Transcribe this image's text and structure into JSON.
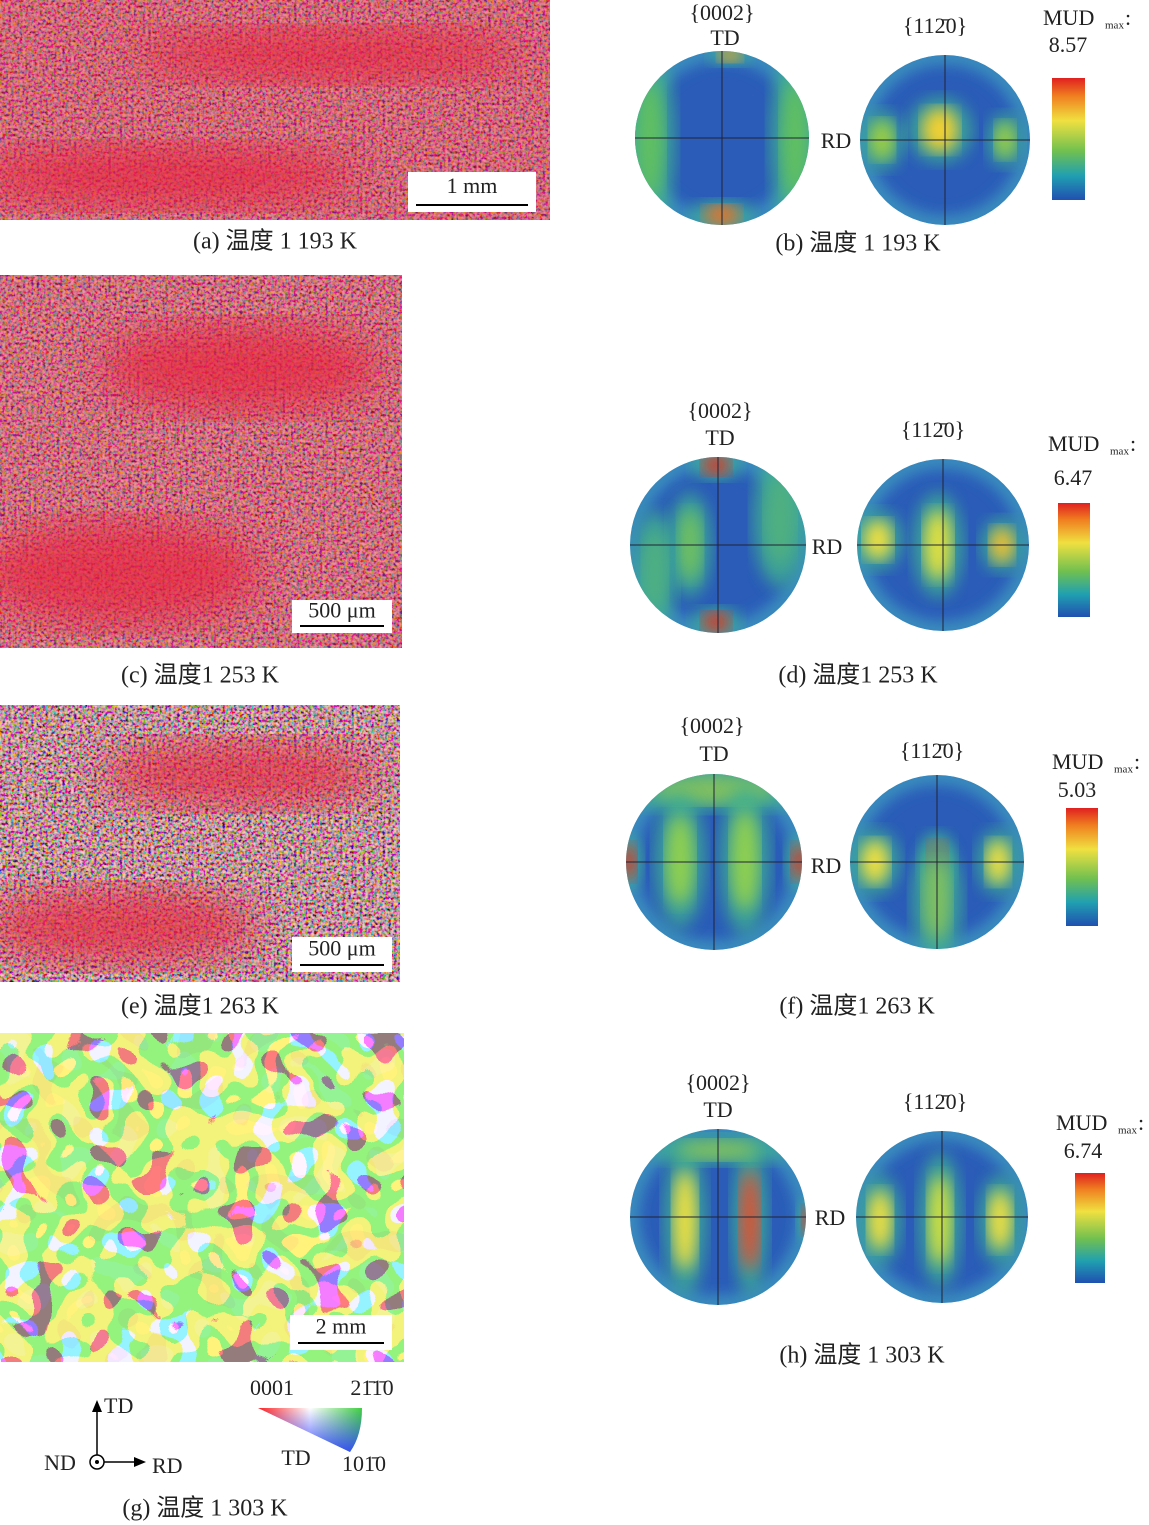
{
  "maps": [
    {
      "caption": "(a) 温度 1 193 K",
      "scale_bar": "1 mm"
    },
    {
      "caption": "(c) 温度1 253 K",
      "scale_bar": "500 μm"
    },
    {
      "caption": "(e) 温度1 263 K",
      "scale_bar": "500 μm"
    },
    {
      "caption": "(g) 温度 1 303 K",
      "scale_bar": "2 mm"
    }
  ],
  "pole_figures": [
    {
      "caption": "(b) 温度 1 193 K",
      "basal": "{0002}",
      "td": "TD",
      "prism": "{112̄0}",
      "rd": "RD",
      "mud": "MUD",
      "mud_sub": "max",
      "mud_colon": ":",
      "mud_value": "8.57"
    },
    {
      "caption": "(d) 温度1 253 K",
      "basal": "{0002}",
      "td": "TD",
      "prism": "{112̄0}",
      "rd": "RD",
      "mud": "MUD",
      "mud_sub": "max",
      "mud_colon": ":",
      "mud_value": "6.47"
    },
    {
      "caption": "(f) 温度1 263 K",
      "basal": "{0002}",
      "td": "TD",
      "prism": "{112̄0}",
      "rd": "RD",
      "mud": "MUD",
      "mud_sub": "max",
      "mud_colon": ":",
      "mud_value": "5.03"
    },
    {
      "caption": "(h) 温度 1 303 K",
      "basal": "{0002}",
      "td": "TD",
      "prism": "{112̄0}",
      "rd": "RD",
      "mud": "MUD",
      "mud_sub": "max",
      "mud_colon": ":",
      "mud_value": "6.74"
    }
  ],
  "legend": {
    "axis_td": "TD",
    "axis_nd": "ND",
    "axis_rd": "RD",
    "corner_0001": "0001",
    "corner_2110": "21̄1̄0",
    "corner_1010": "101̄0",
    "triangle_td": "TD"
  }
}
